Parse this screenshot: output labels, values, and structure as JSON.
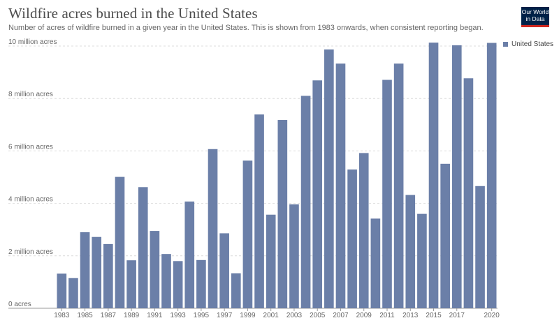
{
  "header": {
    "title": "Wildfire acres burned in the United States",
    "subtitle": "Number of acres of wildfire burned in a given year in the United States. This is shown from 1983 onwards, when consistent reporting began."
  },
  "logo": {
    "line1": "Our World",
    "line2": "in Data"
  },
  "colors": {
    "bar": "#6b7fa8",
    "logo_bg": "#002147",
    "logo_accent": "#ce261e"
  },
  "chart_data": {
    "type": "bar",
    "title": "Wildfire acres burned in the United States",
    "subtitle": "Number of acres of wildfire burned in a given year in the United States. This is shown from 1983 onwards, when consistent reporting began.",
    "legend_position": "top-right",
    "grid": true,
    "ylim": [
      0,
      10000000
    ],
    "ytick_values": [
      0,
      2000000,
      4000000,
      6000000,
      8000000,
      10000000
    ],
    "ytick_labels": [
      "0 acres",
      "2 million acres",
      "4 million acres",
      "6 million acres",
      "8 million acres",
      "10 million acres"
    ],
    "x_tick_labels": [
      "1983",
      "1985",
      "1987",
      "1989",
      "1991",
      "1993",
      "1995",
      "1997",
      "1999",
      "2001",
      "2003",
      "2005",
      "2007",
      "2009",
      "2011",
      "2013",
      "2015",
      "2017",
      "2020"
    ],
    "categories": [
      "1983",
      "1984",
      "1985",
      "1986",
      "1987",
      "1988",
      "1989",
      "1990",
      "1991",
      "1992",
      "1993",
      "1994",
      "1995",
      "1996",
      "1997",
      "1998",
      "1999",
      "2000",
      "2001",
      "2002",
      "2003",
      "2004",
      "2005",
      "2006",
      "2007",
      "2008",
      "2009",
      "2010",
      "2011",
      "2012",
      "2013",
      "2014",
      "2015",
      "2016",
      "2017",
      "2018",
      "2019",
      "2020"
    ],
    "series": [
      {
        "name": "United States",
        "values": [
          1320000,
          1150000,
          2900000,
          2720000,
          2450000,
          5010000,
          1830000,
          4620000,
          2950000,
          2070000,
          1800000,
          4070000,
          1840000,
          6070000,
          2860000,
          1330000,
          5630000,
          7390000,
          3570000,
          7180000,
          3960000,
          8100000,
          8690000,
          9870000,
          9330000,
          5290000,
          5920000,
          3420000,
          8710000,
          9330000,
          4320000,
          3600000,
          10130000,
          5510000,
          10030000,
          8770000,
          4660000,
          10120000
        ]
      }
    ]
  }
}
